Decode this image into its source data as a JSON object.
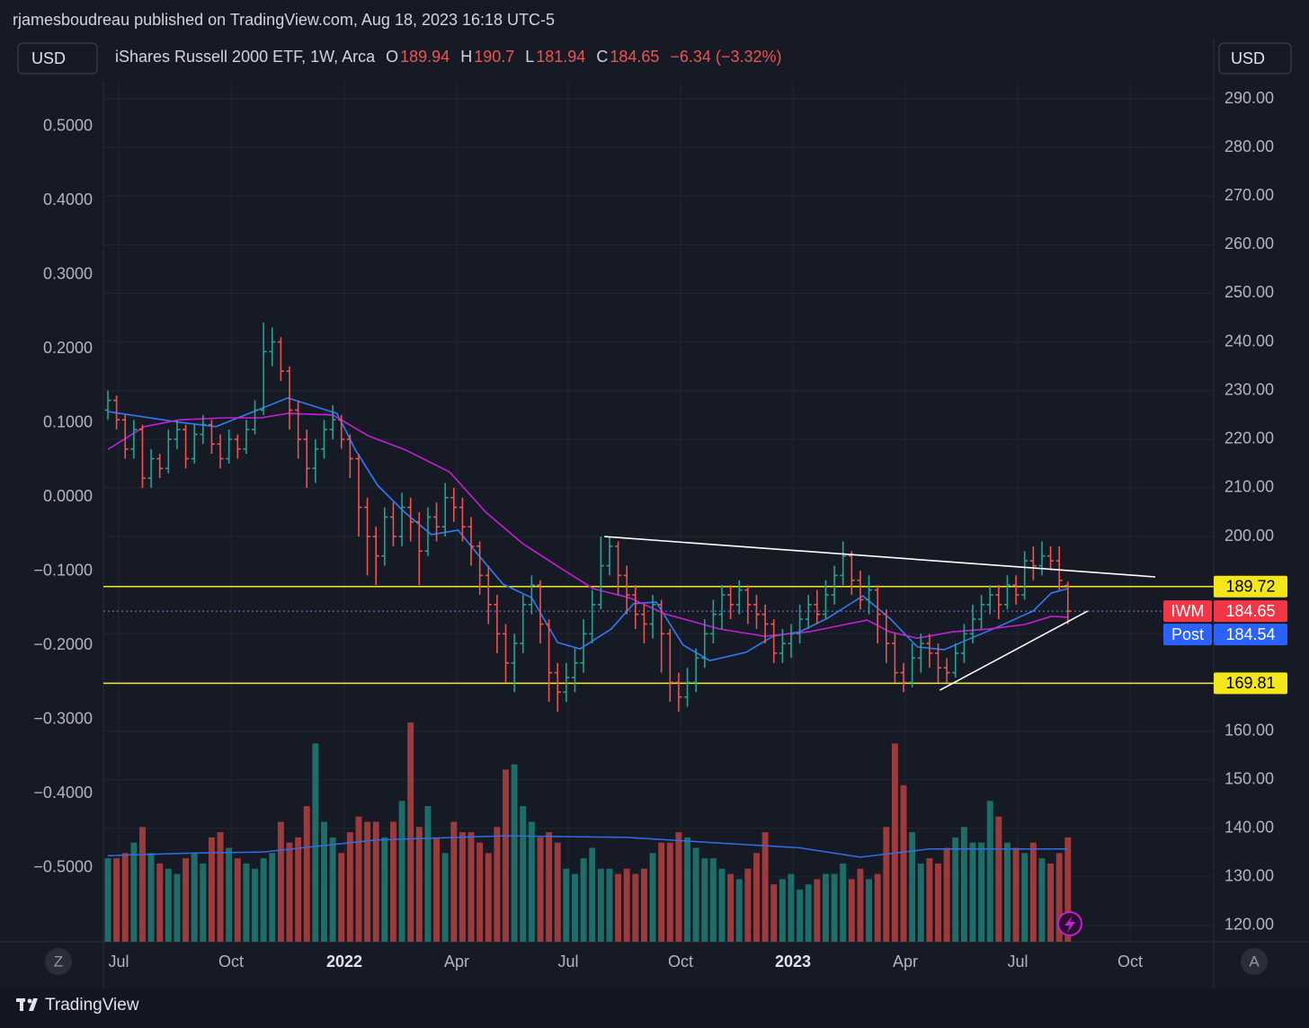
{
  "header": {
    "publisher": "rjamesboudreau published on TradingView.com, Aug 18, 2023 16:18 UTC-5",
    "currency_left": "USD",
    "currency_right": "USD"
  },
  "legend": {
    "symbol": "iShares Russell 2000 ETF, 1W, Arca",
    "open_label": "O",
    "high_label": "H",
    "low_label": "L",
    "close_label": "C",
    "change": "−6.34 (−3.32%)"
  },
  "footer": {
    "brand": "TradingView",
    "left_button": "Z",
    "right_button": "A"
  },
  "chart_data": {
    "type": "ohlc",
    "up_color": "#22a394",
    "down_color": "#ef5350",
    "volume_up_color": "#1d6d68",
    "volume_down_color": "#9c3a3c",
    "x": [
      0,
      1,
      2,
      3,
      4,
      5,
      6,
      7,
      8,
      9,
      10,
      11,
      12,
      13,
      14,
      15,
      16,
      17,
      18,
      19,
      20,
      21,
      22,
      23,
      24,
      25,
      26,
      27,
      28,
      29,
      30,
      31,
      32,
      33,
      34,
      35,
      36,
      37,
      38,
      39,
      40,
      41,
      42,
      43,
      44,
      45,
      46,
      47,
      48,
      49,
      50,
      51,
      52,
      53,
      54,
      55,
      56,
      57,
      58,
      59,
      60,
      61,
      62,
      63,
      64,
      65,
      66,
      67,
      68,
      69,
      70,
      71,
      72,
      73,
      74,
      75,
      76,
      77,
      78,
      79,
      80,
      81,
      82,
      83,
      84,
      85,
      86,
      87,
      88,
      89,
      90,
      91,
      92,
      93,
      94,
      95,
      96,
      97,
      98,
      99,
      100,
      101,
      102,
      103,
      104,
      105,
      106,
      107,
      108,
      109,
      110,
      111
    ],
    "open": [
      226,
      228,
      224,
      218,
      222,
      212,
      216,
      214,
      220,
      222,
      216,
      221,
      223,
      219,
      216,
      220,
      218,
      222,
      226,
      238,
      240,
      234,
      226,
      220,
      214,
      218,
      222,
      224,
      220,
      216,
      206,
      200,
      196,
      204,
      200,
      206,
      203,
      197,
      204,
      202,
      208,
      206,
      202,
      198,
      192,
      186,
      180,
      174,
      178,
      186,
      190,
      182,
      172,
      168,
      171,
      174,
      180,
      186,
      194,
      198,
      192,
      188,
      184,
      182,
      186,
      180,
      170,
      167,
      170,
      175,
      180,
      184,
      188,
      186,
      189,
      186,
      184,
      182,
      176,
      178,
      180,
      183,
      186,
      184,
      188,
      192,
      196,
      191,
      187,
      189,
      184,
      178,
      172,
      170,
      175,
      178,
      176,
      173,
      172,
      176,
      180,
      183,
      186,
      188,
      186,
      190,
      188,
      195,
      194,
      196,
      195,
      189.94
    ],
    "high": [
      230,
      229,
      225,
      224,
      223,
      218,
      217,
      222,
      224,
      223,
      223,
      225,
      224,
      221,
      222,
      221,
      224,
      228,
      244,
      243,
      241,
      235,
      228,
      222,
      220,
      224,
      227,
      225,
      221,
      217,
      208,
      202,
      206,
      207,
      209,
      208,
      205,
      206,
      207,
      211,
      210,
      208,
      204,
      199,
      194,
      188,
      182,
      180,
      188,
      192,
      191,
      183,
      174,
      174,
      177,
      183,
      189,
      200,
      200,
      199,
      194,
      190,
      186,
      188,
      187,
      181,
      172,
      173,
      177,
      183,
      187,
      190,
      190,
      191,
      190,
      188,
      186,
      183,
      181,
      182,
      186,
      188,
      189,
      191,
      194,
      199,
      197,
      193,
      192,
      190,
      185,
      180,
      174,
      178,
      180,
      180,
      178,
      175,
      178,
      182,
      186,
      188,
      190,
      190,
      192,
      192,
      197,
      198,
      199,
      198,
      198,
      190.7
    ],
    "low": [
      224,
      222,
      216,
      216,
      210,
      210,
      212,
      213,
      218,
      214,
      215,
      219,
      217,
      214,
      215,
      216,
      217,
      221,
      225,
      235,
      232,
      222,
      216,
      210,
      211,
      216,
      220,
      218,
      212,
      200,
      192,
      190,
      194,
      198,
      198,
      199,
      190,
      196,
      199,
      200,
      203,
      199,
      194,
      188,
      182,
      176,
      170,
      168,
      176,
      184,
      178,
      166,
      164,
      166,
      168,
      172,
      178,
      185,
      192,
      188,
      184,
      181,
      178,
      179,
      172,
      166,
      164,
      165,
      168,
      173,
      178,
      181,
      183,
      184,
      182,
      181,
      178,
      174,
      174,
      175,
      178,
      181,
      182,
      183,
      186,
      190,
      188,
      185,
      184,
      178,
      174,
      170,
      168,
      169,
      172,
      173,
      170,
      170,
      171,
      174,
      178,
      181,
      184,
      183,
      185,
      186,
      187,
      191,
      192,
      193,
      189,
      181.94
    ],
    "close": [
      228,
      224,
      218,
      222,
      212,
      216,
      214,
      220,
      222,
      216,
      221,
      223,
      219,
      216,
      220,
      218,
      222,
      226,
      238,
      240,
      234,
      226,
      220,
      214,
      218,
      222,
      224,
      220,
      216,
      206,
      200,
      196,
      204,
      200,
      206,
      203,
      197,
      204,
      202,
      208,
      206,
      202,
      198,
      192,
      186,
      180,
      174,
      178,
      186,
      190,
      182,
      172,
      168,
      171,
      174,
      180,
      186,
      194,
      198,
      192,
      188,
      184,
      182,
      186,
      180,
      170,
      167,
      170,
      175,
      180,
      184,
      188,
      186,
      189,
      186,
      184,
      182,
      176,
      178,
      180,
      183,
      186,
      184,
      188,
      192,
      196,
      191,
      187,
      189,
      184,
      178,
      172,
      170,
      175,
      178,
      176,
      173,
      172,
      176,
      180,
      183,
      186,
      188,
      186,
      190,
      188,
      195,
      194,
      196,
      195,
      190.99,
      184.65
    ],
    "volume": [
      160,
      160,
      170,
      190,
      220,
      170,
      150,
      140,
      130,
      160,
      170,
      150,
      200,
      210,
      180,
      160,
      150,
      140,
      160,
      170,
      230,
      190,
      200,
      260,
      380,
      230,
      200,
      170,
      210,
      240,
      230,
      230,
      200,
      230,
      270,
      420,
      220,
      260,
      200,
      170,
      230,
      210,
      210,
      190,
      170,
      220,
      330,
      340,
      260,
      230,
      200,
      210,
      190,
      140,
      130,
      160,
      180,
      140,
      140,
      130,
      140,
      130,
      140,
      170,
      190,
      190,
      210,
      200,
      180,
      160,
      160,
      140,
      130,
      120,
      140,
      170,
      210,
      110,
      120,
      130,
      100,
      110,
      120,
      130,
      130,
      150,
      120,
      140,
      120,
      130,
      220,
      380,
      300,
      210,
      150,
      160,
      150,
      180,
      200,
      220,
      190,
      190,
      270,
      240,
      190,
      180,
      170,
      190,
      160,
      150,
      170,
      200
    ],
    "volume_ylim": [
      0,
      1650
    ],
    "xlim": [
      -0.52,
      127.86
    ],
    "xticks": [
      {
        "value": 1.25,
        "label": "Jul"
      },
      {
        "value": 14.24,
        "label": "Oct"
      },
      {
        "value": 27.34,
        "label": "2022"
      },
      {
        "value": 40.33,
        "label": "Apr"
      },
      {
        "value": 53.22,
        "label": "Jul"
      },
      {
        "value": 66.22,
        "label": "Oct"
      },
      {
        "value": 79.21,
        "label": "2023"
      },
      {
        "value": 92.2,
        "label": "Apr"
      },
      {
        "value": 105.2,
        "label": "Jul"
      },
      {
        "value": 118.19,
        "label": "Oct"
      }
    ],
    "bold_xticks": [
      "2022",
      "2023"
    ],
    "ylim": [
      116.67,
      293.7
    ],
    "yticks": [
      {
        "value": 290,
        "label": "290.00"
      },
      {
        "value": 280,
        "label": "280.00"
      },
      {
        "value": 270,
        "label": "270.00"
      },
      {
        "value": 260,
        "label": "260.00"
      },
      {
        "value": 250,
        "label": "250.00"
      },
      {
        "value": 240,
        "label": "240.00"
      },
      {
        "value": 230,
        "label": "230.00"
      },
      {
        "value": 220,
        "label": "220.00"
      },
      {
        "value": 210,
        "label": "210.00"
      },
      {
        "value": 200,
        "label": "200.00"
      },
      {
        "value": 190,
        "label": "190.00"
      },
      {
        "value": 180,
        "label": "180.00"
      },
      {
        "value": 170,
        "label": "170.00"
      },
      {
        "value": 160,
        "label": "160.00"
      },
      {
        "value": 150,
        "label": "150.00"
      },
      {
        "value": 140,
        "label": "140.00"
      },
      {
        "value": 130,
        "label": "130.00"
      },
      {
        "value": 120,
        "label": "120.00"
      }
    ],
    "y2lim": [
      -0.5994,
      0.5618
    ],
    "y2ticks": [
      {
        "value": 0.5,
        "label": "0.5000"
      },
      {
        "value": 0.4,
        "label": "0.4000"
      },
      {
        "value": 0.3,
        "label": "0.3000"
      },
      {
        "value": 0.2,
        "label": "0.2000"
      },
      {
        "value": 0.1,
        "label": "0.1000"
      },
      {
        "value": 0,
        "label": "0.0000"
      },
      {
        "value": -0.1,
        "label": "−0.1000"
      },
      {
        "value": -0.2,
        "label": "−0.2000"
      },
      {
        "value": -0.3,
        "label": "−0.3000"
      },
      {
        "value": -0.4,
        "label": "−0.4000"
      },
      {
        "value": -0.5,
        "label": "−0.5000"
      }
    ],
    "grid": true,
    "moving_averages": [
      {
        "color": "#2f7cf6",
        "x": [
          0,
          8.3,
          12.5,
          17.7,
          20.8,
          26.5,
          28.6,
          31.2,
          34.3,
          37.4,
          40.5,
          42.6,
          45.7,
          49,
          52,
          54.6,
          58.2,
          60.8,
          63.4,
          66.5,
          69.6,
          73.8,
          76.9,
          80,
          83.2,
          87.3,
          90.4,
          93.6,
          96.7,
          99.8,
          102.9,
          107,
          109.1,
          111
        ],
        "values": [
          225.7,
          223.5,
          222.6,
          226.3,
          228.5,
          225.3,
          217.9,
          210.5,
          205,
          200.4,
          201.3,
          196.7,
          190.2,
          187.4,
          178.2,
          176.9,
          181,
          186.2,
          186.5,
          177.7,
          174.5,
          176.2,
          179.5,
          180.4,
          183.2,
          187.8,
          183.2,
          177.3,
          176.7,
          179.1,
          181.4,
          184.7,
          188.4,
          189.3
        ]
      },
      {
        "color": "#c41fd6",
        "x": [
          0,
          4.2,
          8.3,
          13.5,
          17.7,
          20.8,
          26,
          30.1,
          34.3,
          39.5,
          43.7,
          48,
          52,
          56.1,
          60.3,
          64.4,
          70.7,
          75.9,
          81.1,
          85.2,
          87.8,
          90.4,
          93.6,
          97.7,
          101.9,
          106,
          109.1,
          111
        ],
        "values": [
          217.9,
          222.6,
          224,
          224.4,
          224.4,
          225.3,
          225,
          220.7,
          217.9,
          213.3,
          205,
          198.5,
          193.9,
          189.3,
          187.4,
          184.1,
          181,
          179.5,
          180.4,
          181.9,
          182.8,
          180.4,
          179.1,
          180.4,
          181,
          181.9,
          183.6,
          183.4
        ]
      }
    ],
    "volume_ma": {
      "color": "#2f6ee8",
      "x": [
        0,
        10,
        18,
        31,
        46,
        60,
        70,
        80,
        87,
        95,
        111
      ],
      "values": [
        165,
        170,
        172,
        195,
        203,
        200,
        190,
        180,
        162,
        178,
        178
      ]
    },
    "levels": [
      {
        "value": 189.72,
        "color": "#f5e61a"
      },
      {
        "value": 169.81,
        "color": "#f5e61a"
      }
    ],
    "trendlines": [
      {
        "color": "#ffffff",
        "x": [
          57.4,
          121.1
        ],
        "values": [
          200.0,
          191.7
        ]
      },
      {
        "color": "#ffffff",
        "x": [
          96.2,
          113.3
        ],
        "values": [
          168.4,
          184.7
        ]
      }
    ],
    "last_price": {
      "name": "IWM",
      "color": "#f23645"
    },
    "post_price": {
      "name": "Post",
      "value": 184.54,
      "color": "#2962ff"
    }
  }
}
